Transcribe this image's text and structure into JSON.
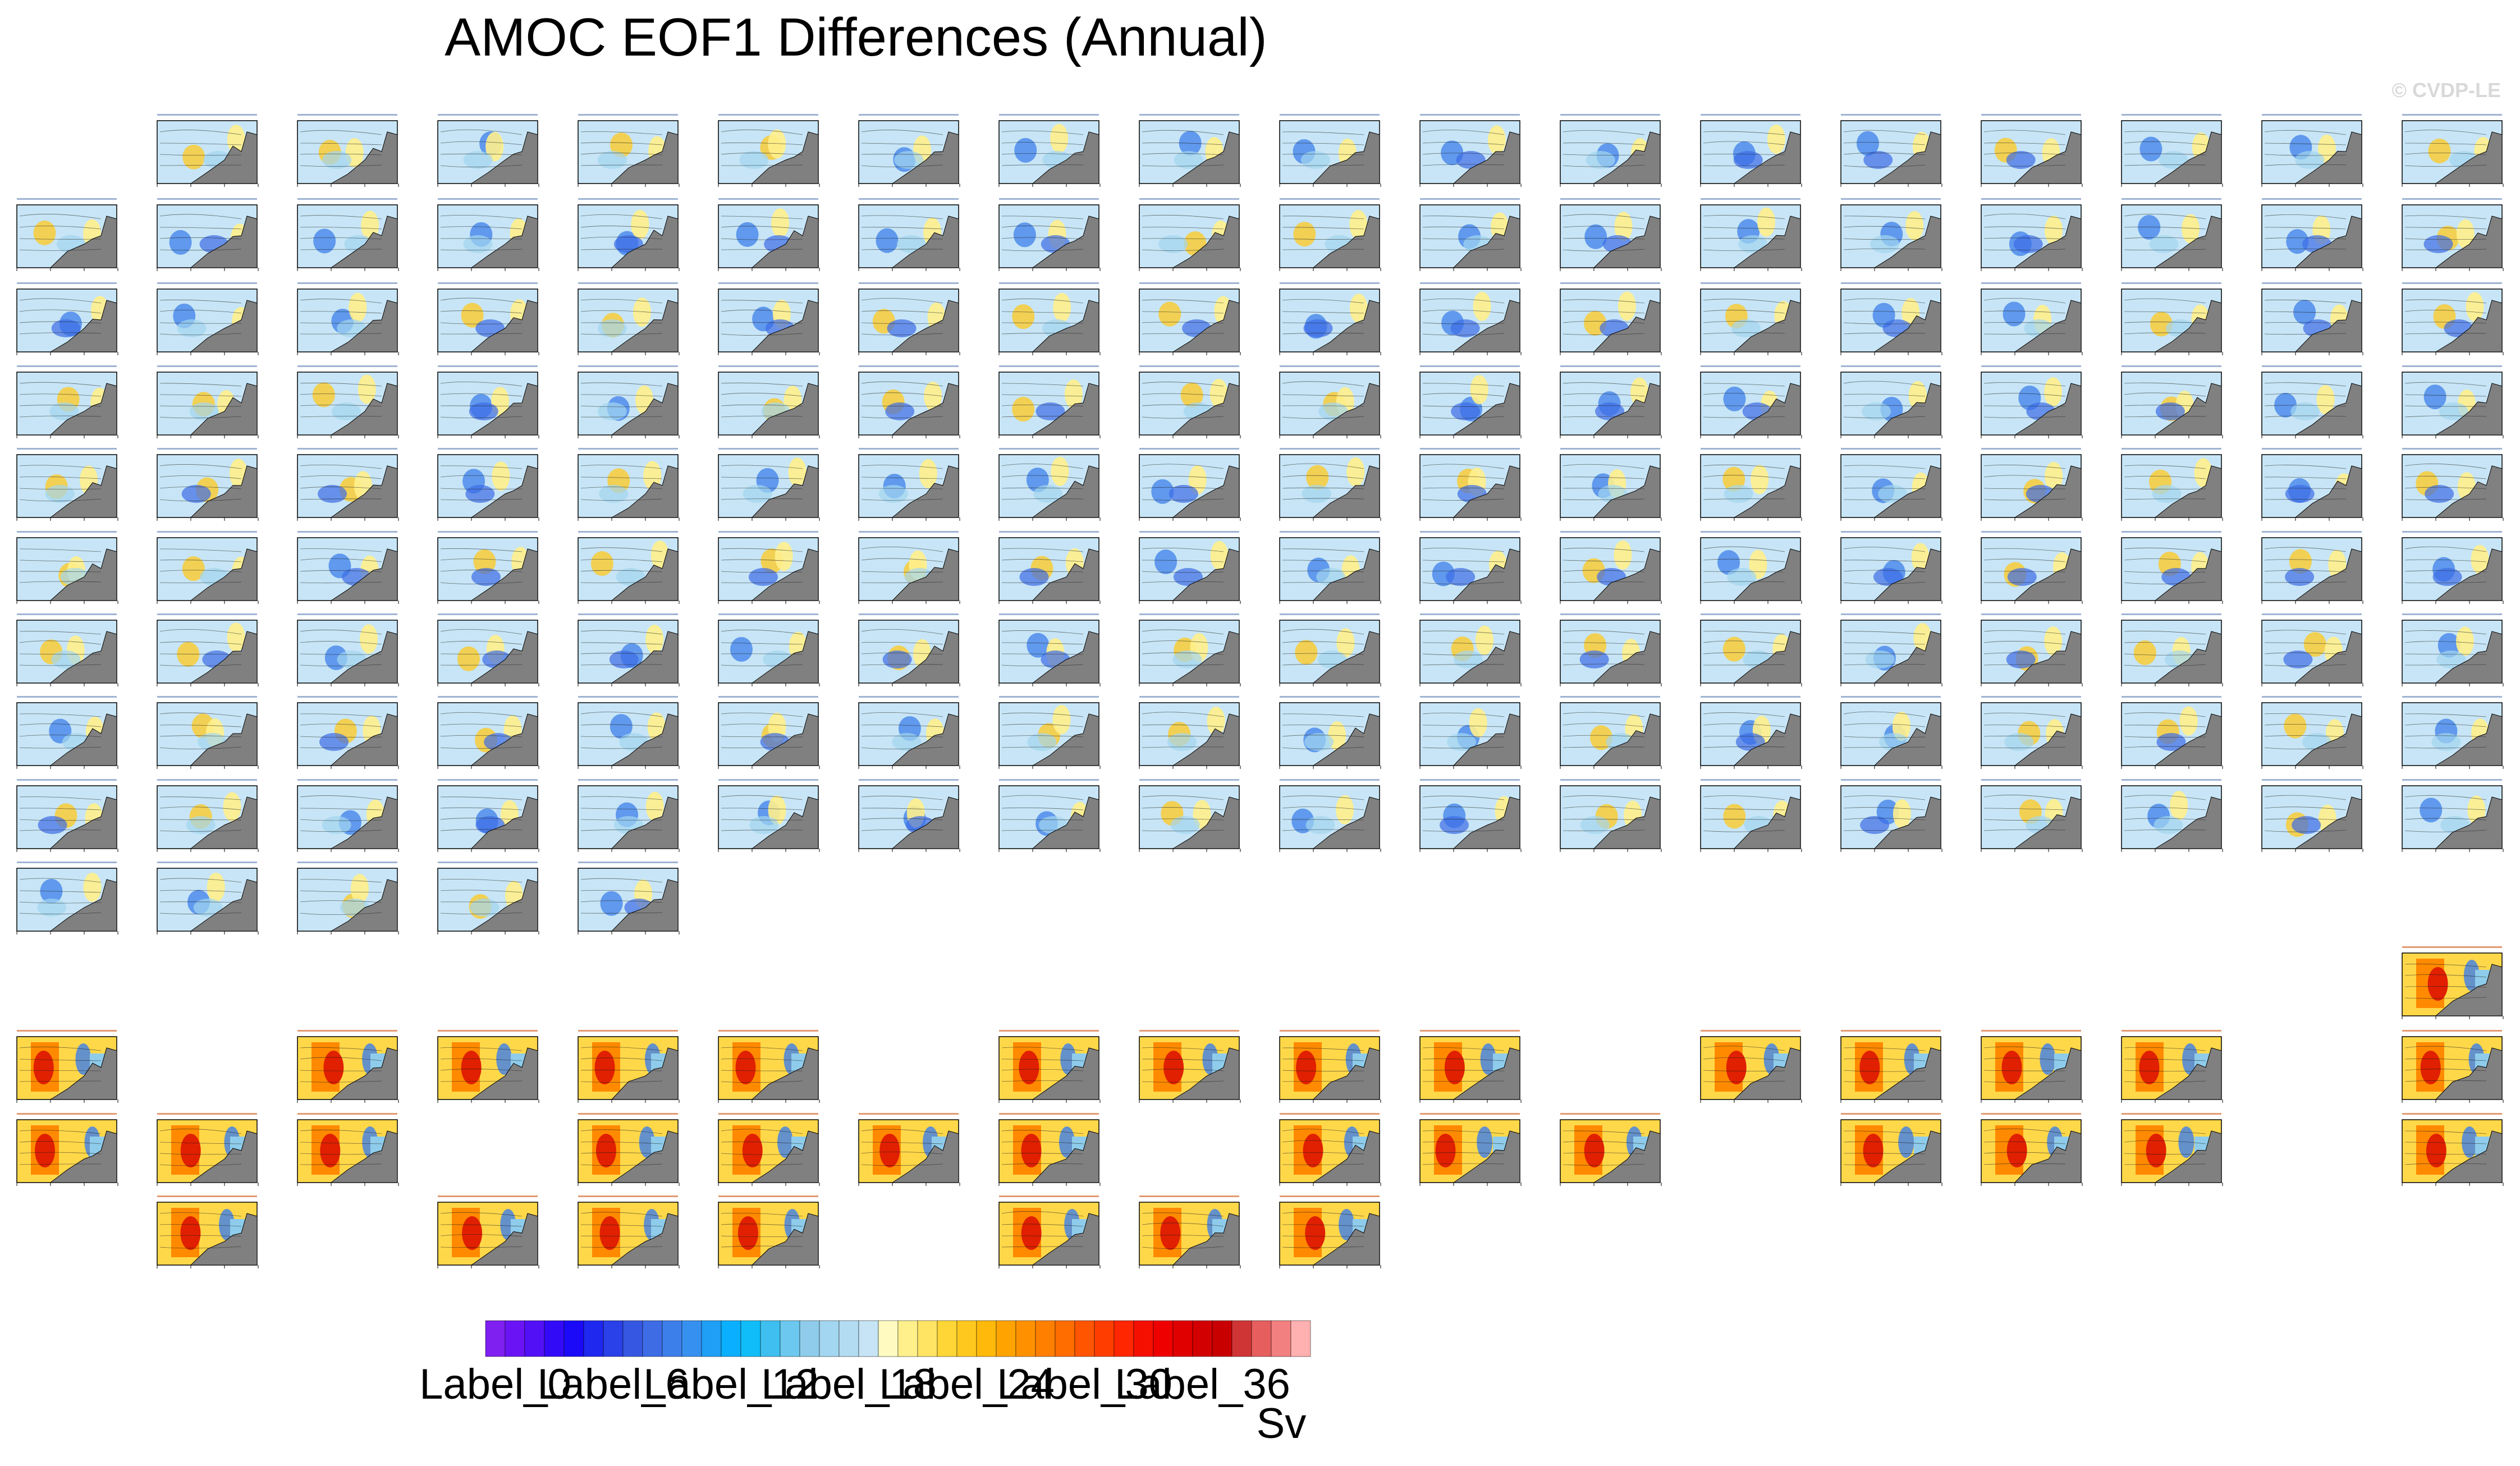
{
  "title": "AMOC EOF1 Differences (Annual)",
  "watermark": "© CVDP-LE",
  "chart_data": {
    "type": "heatmap",
    "title": "AMOC EOF1 Differences (Annual)",
    "description_units": "Sv",
    "panel_grid": {
      "columns": 18,
      "cmip_rows": [
        {
          "row": 1,
          "panels": [
            1,
            2,
            3,
            4,
            5,
            6,
            7,
            8,
            9,
            10,
            11,
            12,
            13,
            14,
            15,
            16,
            17
          ]
        },
        {
          "row": 2,
          "panels": [
            0,
            1,
            2,
            3,
            4,
            5,
            6,
            7,
            8,
            9,
            10,
            11,
            12,
            13,
            14,
            15,
            16,
            17
          ]
        },
        {
          "row": 3,
          "panels": [
            0,
            1,
            2,
            3,
            4,
            5,
            6,
            7,
            8,
            9,
            10,
            11,
            12,
            13,
            14,
            15,
            16,
            17
          ]
        },
        {
          "row": 4,
          "panels": [
            0,
            1,
            2,
            3,
            4,
            5,
            6,
            7,
            8,
            9,
            10,
            11,
            12,
            13,
            14,
            15,
            16,
            17
          ]
        },
        {
          "row": 5,
          "panels": [
            0,
            1,
            2,
            3,
            4,
            5,
            6,
            7,
            8,
            9,
            10,
            11,
            12,
            13,
            14,
            15,
            16,
            17
          ]
        },
        {
          "row": 6,
          "panels": [
            0,
            1,
            2,
            3,
            4,
            5,
            6,
            7,
            8,
            9,
            10,
            11,
            12,
            13,
            14,
            15,
            16,
            17
          ]
        },
        {
          "row": 7,
          "panels": [
            0,
            1,
            2,
            3,
            4,
            5,
            6,
            7,
            8,
            9,
            10,
            11,
            12,
            13,
            14,
            15,
            16,
            17
          ]
        },
        {
          "row": 8,
          "panels": [
            0,
            1,
            2,
            3,
            4,
            5,
            6,
            7,
            8,
            9,
            10,
            11,
            12,
            13,
            14,
            15,
            16,
            17
          ]
        },
        {
          "row": 9,
          "panels": [
            0,
            1,
            2,
            3,
            4,
            5,
            6,
            7,
            8,
            9,
            10,
            11,
            12,
            13,
            14,
            15,
            16,
            17
          ]
        },
        {
          "row": 10,
          "panels": [
            0,
            1,
            2,
            3,
            4
          ]
        }
      ],
      "lens_rows": [
        {
          "row": 11,
          "panels": [
            17
          ]
        },
        {
          "row": 12,
          "panels": [
            0,
            2,
            3,
            4,
            5,
            7,
            8,
            9,
            10,
            12,
            13,
            14,
            15,
            17
          ]
        },
        {
          "row": 13,
          "panels": [
            0,
            1,
            2,
            4,
            5,
            6,
            7,
            9,
            10,
            11,
            13,
            14,
            15,
            17
          ]
        },
        {
          "row": 14,
          "panels": [
            1,
            3,
            4,
            5,
            7,
            8,
            9
          ]
        }
      ]
    },
    "colorbar": {
      "label": "Sv",
      "colors": [
        "#7f1ff0",
        "#6a14f5",
        "#5210f7",
        "#330af8",
        "#1a0af8",
        "#1e28ee",
        "#2a40e8",
        "#3657e2",
        "#3d6ce5",
        "#3d7fea",
        "#3690f0",
        "#1f9ff5",
        "#0aafff",
        "#10bdf9",
        "#3ebff0",
        "#6cc8ef",
        "#8fcceb",
        "#a3d6f0",
        "#b3dcf2",
        "#c6e4f6",
        "#fffbc0",
        "#fff08c",
        "#ffe464",
        "#ffd636",
        "#ffc81e",
        "#ffb90a",
        "#ffa300",
        "#ff9100",
        "#ff7f00",
        "#ff6c00",
        "#ff5500",
        "#ff3d00",
        "#ff2600",
        "#f50f00",
        "#ef0000",
        "#e00000",
        "#d20000",
        "#c80000",
        "#d03535",
        "#e65e5e",
        "#f28080",
        "#ffb0b0"
      ],
      "tick_labels": [
        "Label_0",
        "Label_6",
        "Label_12",
        "Label_18",
        "Label_24",
        "Label_30",
        "Label_36"
      ],
      "tick_box_index": [
        0,
        6,
        12,
        18,
        24,
        30,
        36
      ]
    }
  }
}
